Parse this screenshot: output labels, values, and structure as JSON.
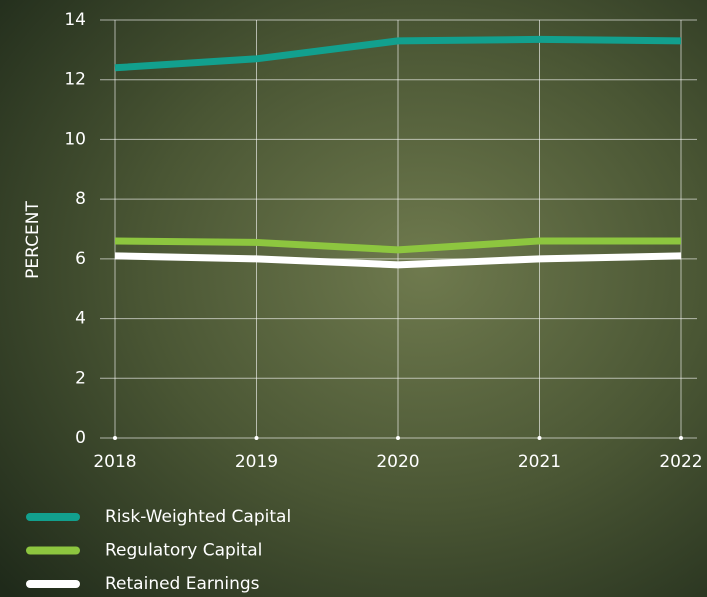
{
  "chart_data": {
    "type": "line",
    "y_label": "PERCENT",
    "categories": [
      "2018",
      "2019",
      "2020",
      "2021",
      "2022"
    ],
    "series": [
      {
        "name": "Risk-Weighted Capital",
        "color": "#12a08e",
        "values": [
          12.4,
          12.7,
          13.3,
          13.35,
          13.3
        ]
      },
      {
        "name": "Regulatory Capital",
        "color": "#8dc63f",
        "values": [
          6.6,
          6.55,
          6.3,
          6.6,
          6.6
        ]
      },
      {
        "name": "Retained Earnings",
        "color": "#ffffff",
        "values": [
          6.1,
          6.0,
          5.8,
          6.0,
          6.1
        ]
      }
    ],
    "ylim": [
      0,
      14
    ],
    "yticks": [
      0,
      2,
      4,
      6,
      8,
      10,
      12,
      14
    ],
    "grid": true
  }
}
